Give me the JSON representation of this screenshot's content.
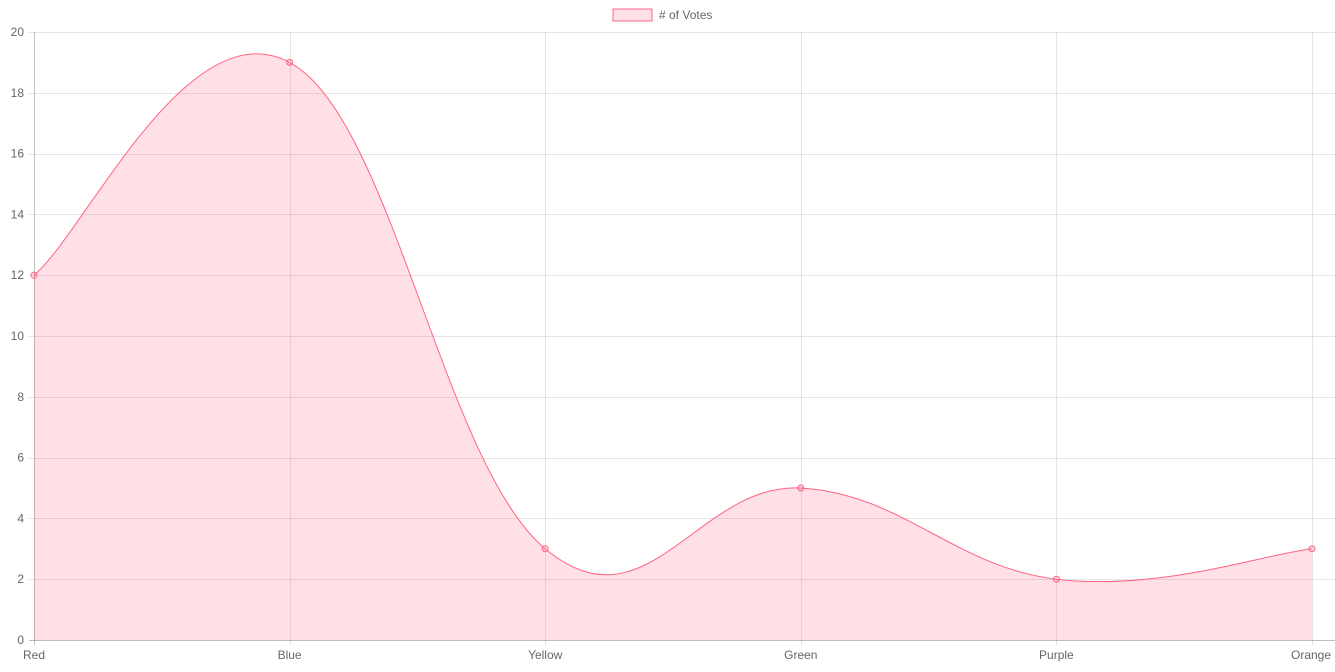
{
  "chart_data": {
    "type": "area",
    "categories": [
      "Red",
      "Blue",
      "Yellow",
      "Green",
      "Purple",
      "Orange"
    ],
    "series": [
      {
        "name": "# of Votes",
        "values": [
          12,
          19,
          3,
          5,
          2,
          3
        ],
        "line_color": "#ff6384",
        "fill_color": "rgba(255, 99, 132, 0.2)"
      }
    ],
    "ylim": [
      0,
      20
    ],
    "yticks": [
      0,
      2,
      4,
      6,
      8,
      10,
      12,
      14,
      16,
      18,
      20
    ],
    "grid": true,
    "legend_position": "top-center",
    "title": "",
    "xlabel": "",
    "ylabel": ""
  }
}
